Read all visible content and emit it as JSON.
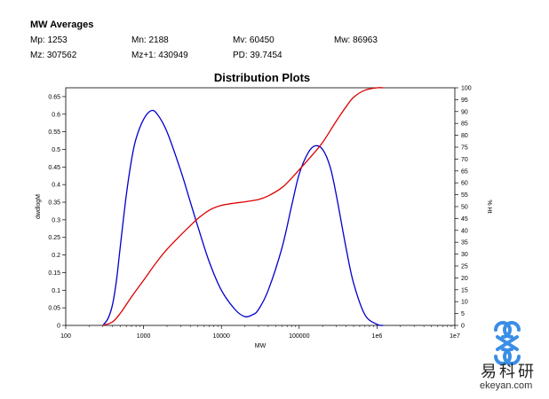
{
  "stats": {
    "title": "MW Averages",
    "items": [
      {
        "text": "Mp: 1253"
      },
      {
        "text": "Mn: 2188"
      },
      {
        "text": "Mv: 60450"
      },
      {
        "text": "Mw: 86963"
      },
      {
        "text": "Mz: 307562"
      },
      {
        "text": "Mz+1: 430949"
      },
      {
        "text": "PD: 39.7454"
      }
    ]
  },
  "chart_data": {
    "type": "line",
    "title": "Distribution Plots",
    "xlabel": "MW",
    "ylabel": "dwdlogM",
    "y2label": "% Ht",
    "xscale": "log",
    "xlim": [
      100,
      10000000
    ],
    "ylim": [
      0,
      0.675
    ],
    "y2lim": [
      0,
      100
    ],
    "x_ticks": [
      "100",
      "1000",
      "10000",
      "100000",
      "1e6",
      "1e7"
    ],
    "y_ticks": [
      "0",
      "0.05",
      "0.1",
      "0.15",
      "0.2",
      "0.25",
      "0.3",
      "0.35",
      "0.4",
      "0.45",
      "0.5",
      "0.55",
      "0.6",
      "0.65"
    ],
    "y2_ticks": [
      "0",
      "5",
      "10",
      "15",
      "20",
      "25",
      "30",
      "35",
      "40",
      "45",
      "50",
      "55",
      "60",
      "65",
      "70",
      "75",
      "80",
      "85",
      "90",
      "95",
      "100"
    ],
    "grid": false,
    "series": [
      {
        "color": "#0000cc",
        "axis": "left",
        "x": [
          300,
          350,
          400,
          450,
          500,
          600,
          700,
          800,
          1000,
          1250,
          1500,
          2000,
          3000,
          4000,
          5000,
          7000,
          10000,
          15000,
          20000,
          25000,
          30000,
          40000,
          60000,
          80000,
          100000,
          130000,
          160000,
          200000,
          250000,
          300000,
          400000,
          500000,
          700000,
          1000000,
          1200000
        ],
        "y": [
          0,
          0.02,
          0.06,
          0.13,
          0.22,
          0.37,
          0.47,
          0.53,
          0.585,
          0.61,
          0.6,
          0.55,
          0.44,
          0.35,
          0.28,
          0.18,
          0.1,
          0.045,
          0.025,
          0.03,
          0.045,
          0.1,
          0.22,
          0.34,
          0.43,
          0.49,
          0.51,
          0.5,
          0.45,
          0.37,
          0.22,
          0.12,
          0.03,
          0.003,
          0
        ]
      },
      {
        "color": "#dd0000",
        "axis": "right",
        "x": [
          300,
          400,
          500,
          700,
          1000,
          1500,
          2000,
          3000,
          4000,
          5000,
          7000,
          10000,
          15000,
          20000,
          30000,
          40000,
          60000,
          80000,
          100000,
          150000,
          200000,
          300000,
          400000,
          500000,
          700000,
          1000000,
          1200000
        ],
        "y": [
          0,
          1.5,
          5,
          12,
          19,
          27,
          32,
          38,
          42,
          45,
          48.5,
          50.5,
          51.5,
          52,
          53,
          54.5,
          58,
          62,
          65.5,
          72,
          77,
          86,
          92,
          96,
          99,
          100,
          100
        ]
      }
    ]
  },
  "logo": {
    "cn": "易科研",
    "url": "ekeyan.com",
    "color": "#3a8ee6"
  }
}
